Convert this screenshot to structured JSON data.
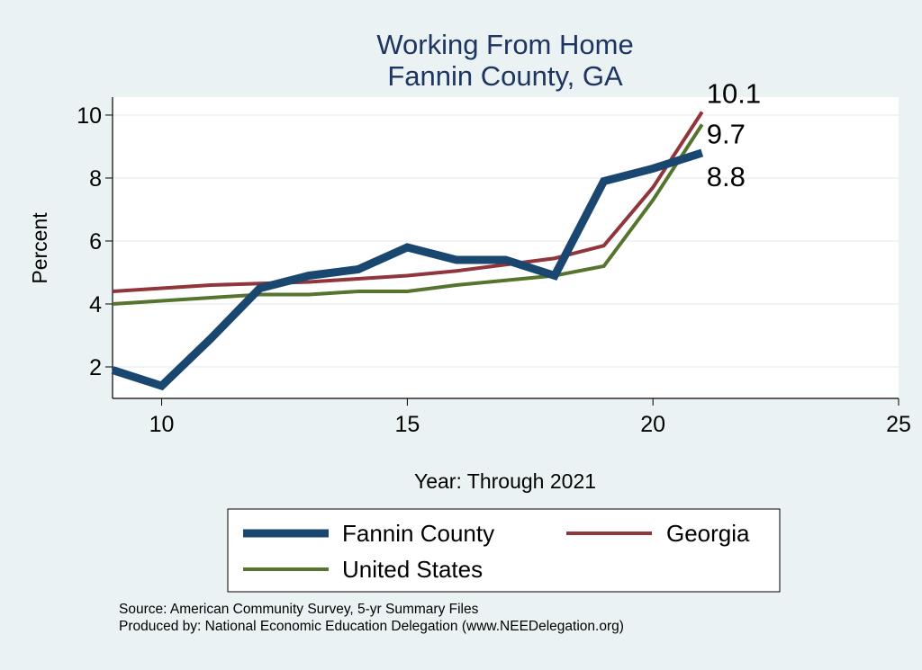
{
  "chart_data": {
    "type": "line",
    "title": "Working From Home",
    "subtitle": "Fannin County, GA",
    "xlabel": "Year: Through 2021",
    "ylabel": "Percent",
    "xlim": [
      9,
      25
    ],
    "ylim": [
      1.0,
      10.57
    ],
    "xticks": [
      10,
      15,
      20,
      25
    ],
    "yticks": [
      2,
      4,
      6,
      8,
      10
    ],
    "grid": true,
    "legend_position": "bottom",
    "x": [
      9,
      10,
      11,
      12,
      13,
      14,
      15,
      16,
      17,
      18,
      19,
      20,
      21
    ],
    "series": [
      {
        "name": "Fannin County",
        "color": "#1a476f",
        "width": 9,
        "values": [
          1.9,
          1.4,
          2.9,
          4.5,
          4.9,
          5.1,
          5.8,
          5.4,
          5.4,
          4.9,
          7.9,
          8.3,
          8.8
        ],
        "end_label": "8.8"
      },
      {
        "name": "Georgia",
        "color": "#90353b",
        "width": 4,
        "values": [
          4.4,
          4.5,
          4.6,
          4.65,
          4.7,
          4.8,
          4.9,
          5.05,
          5.25,
          5.45,
          5.85,
          7.7,
          10.1
        ],
        "end_label": "10.1"
      },
      {
        "name": "United States",
        "color": "#55752f",
        "width": 4,
        "values": [
          4.0,
          4.1,
          4.2,
          4.3,
          4.3,
          4.4,
          4.4,
          4.6,
          4.75,
          4.9,
          5.2,
          7.3,
          9.7
        ],
        "end_label": "9.7"
      }
    ]
  },
  "notes": {
    "source": "Source: American Community Survey, 5-yr Summary Files",
    "produced": "Produced by: National Economic Education Delegation (www.NEEDelegation.org)"
  }
}
